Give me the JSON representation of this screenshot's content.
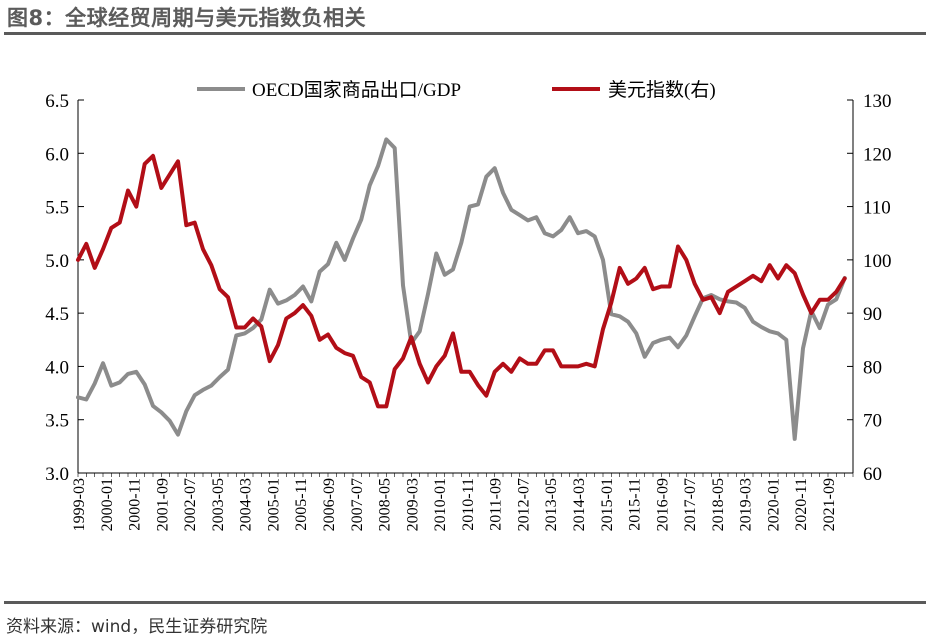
{
  "header": {
    "title": "图8：全球经贸周期与美元指数负相关"
  },
  "footer": {
    "source": "资料来源：wind，民生证券研究院"
  },
  "colors": {
    "oecd": "#8c8c8c",
    "dxy": "#b20e17",
    "axis": "#000000",
    "rule": "#5a5a5a",
    "title": "#5b5b5b"
  },
  "chart_data": {
    "type": "line",
    "title": "",
    "legend": [
      "OECD国家商品出口/GDP",
      "美元指数(右)"
    ],
    "legend_position": "top-center",
    "grid": false,
    "x_ticks": [
      "1999-03",
      "2000-01",
      "2000-11",
      "2001-09",
      "2002-07",
      "2003-05",
      "2004-03",
      "2005-01",
      "2005-11",
      "2006-09",
      "2007-07",
      "2008-05",
      "2009-03",
      "2010-01",
      "2010-11",
      "2011-09",
      "2012-07",
      "2013-05",
      "2014-03",
      "2015-01",
      "2015-11",
      "2016-09",
      "2017-07",
      "2018-05",
      "2019-03",
      "2020-01",
      "2020-11",
      "2021-09"
    ],
    "x_range": [
      1999.0,
      2022.25
    ],
    "y_left": {
      "min": 3.0,
      "max": 6.5,
      "ticks": [
        "3.0",
        "3.5",
        "4.0",
        "4.5",
        "5.0",
        "5.5",
        "6.0",
        "6.5"
      ]
    },
    "y_right": {
      "min": 60,
      "max": 130,
      "ticks": [
        "60",
        "70",
        "80",
        "90",
        "100",
        "110",
        "120",
        "130"
      ]
    },
    "series": [
      {
        "name": "OECD国家商品出口/GDP",
        "axis": "left",
        "x": [
          1999.0,
          1999.25,
          1999.5,
          1999.75,
          2000.0,
          2000.25,
          2000.5,
          2000.75,
          2001.0,
          2001.25,
          2001.5,
          2001.75,
          2002.0,
          2002.25,
          2002.5,
          2002.75,
          2003.0,
          2003.25,
          2003.5,
          2003.75,
          2004.0,
          2004.25,
          2004.5,
          2004.75,
          2005.0,
          2005.25,
          2005.5,
          2005.75,
          2006.0,
          2006.25,
          2006.5,
          2006.75,
          2007.0,
          2007.25,
          2007.5,
          2007.75,
          2008.0,
          2008.25,
          2008.5,
          2008.75,
          2009.0,
          2009.25,
          2009.5,
          2009.75,
          2010.0,
          2010.25,
          2010.5,
          2010.75,
          2011.0,
          2011.25,
          2011.5,
          2011.75,
          2012.0,
          2012.25,
          2012.5,
          2012.75,
          2013.0,
          2013.25,
          2013.5,
          2013.75,
          2014.0,
          2014.25,
          2014.5,
          2014.75,
          2015.0,
          2015.25,
          2015.5,
          2015.75,
          2016.0,
          2016.25,
          2016.5,
          2016.75,
          2017.0,
          2017.25,
          2017.5,
          2017.75,
          2018.0,
          2018.25,
          2018.5,
          2018.75,
          2019.0,
          2019.25,
          2019.5,
          2019.75,
          2020.0,
          2020.25,
          2020.5,
          2020.75,
          2021.0,
          2021.25,
          2021.5,
          2021.75,
          2022.0
        ],
        "values": [
          3.71,
          3.69,
          3.84,
          4.03,
          3.82,
          3.85,
          3.93,
          3.95,
          3.83,
          3.63,
          3.57,
          3.49,
          3.36,
          3.58,
          3.73,
          3.78,
          3.82,
          3.9,
          3.97,
          4.29,
          4.31,
          4.36,
          4.44,
          4.72,
          4.59,
          4.62,
          4.67,
          4.75,
          4.61,
          4.89,
          4.96,
          5.16,
          5.0,
          5.2,
          5.38,
          5.7,
          5.88,
          6.13,
          6.05,
          4.76,
          4.22,
          4.33,
          4.68,
          5.06,
          4.86,
          4.91,
          5.16,
          5.5,
          5.52,
          5.78,
          5.86,
          5.63,
          5.47,
          5.42,
          5.37,
          5.4,
          5.25,
          5.22,
          5.28,
          5.4,
          5.25,
          5.27,
          5.22,
          5.0,
          4.49,
          4.47,
          4.42,
          4.31,
          4.09,
          4.22,
          4.25,
          4.27,
          4.18,
          4.29,
          4.47,
          4.64,
          4.67,
          4.63,
          4.61,
          4.6,
          4.55,
          4.42,
          4.37,
          4.33,
          4.31,
          4.25,
          3.32,
          4.17,
          4.52,
          4.36,
          4.58,
          4.63,
          4.83
        ]
      },
      {
        "name": "美元指数(右)",
        "axis": "right",
        "x": [
          1999.0,
          1999.25,
          1999.5,
          1999.75,
          2000.0,
          2000.25,
          2000.5,
          2000.75,
          2001.0,
          2001.25,
          2001.5,
          2001.75,
          2002.0,
          2002.25,
          2002.5,
          2002.75,
          2003.0,
          2003.25,
          2003.5,
          2003.75,
          2004.0,
          2004.25,
          2004.5,
          2004.75,
          2005.0,
          2005.25,
          2005.5,
          2005.75,
          2006.0,
          2006.25,
          2006.5,
          2006.75,
          2007.0,
          2007.25,
          2007.5,
          2007.75,
          2008.0,
          2008.25,
          2008.5,
          2008.75,
          2009.0,
          2009.25,
          2009.5,
          2009.75,
          2010.0,
          2010.25,
          2010.5,
          2010.75,
          2011.0,
          2011.25,
          2011.5,
          2011.75,
          2012.0,
          2012.25,
          2012.5,
          2012.75,
          2013.0,
          2013.25,
          2013.5,
          2013.75,
          2014.0,
          2014.25,
          2014.5,
          2014.75,
          2015.0,
          2015.25,
          2015.5,
          2015.75,
          2016.0,
          2016.25,
          2016.5,
          2016.75,
          2017.0,
          2017.25,
          2017.5,
          2017.75,
          2018.0,
          2018.25,
          2018.5,
          2018.75,
          2019.0,
          2019.25,
          2019.5,
          2019.75,
          2020.0,
          2020.25,
          2020.5,
          2020.75,
          2021.0,
          2021.25,
          2021.5,
          2021.75,
          2022.0
        ],
        "values": [
          100,
          103,
          98.5,
          102,
          106,
          107,
          113,
          110,
          118,
          119.5,
          113.5,
          116,
          118.5,
          106.5,
          107,
          102,
          99,
          94.5,
          93,
          87.3,
          87.3,
          89,
          87.5,
          81,
          84,
          89,
          90,
          91.5,
          89.5,
          85,
          86,
          83.5,
          82.5,
          82,
          78,
          77,
          72.5,
          72.5,
          79.5,
          81.5,
          85.5,
          80.5,
          77,
          80,
          82,
          86.2,
          79,
          79,
          76.5,
          74.5,
          79,
          80.5,
          79,
          81.5,
          80.5,
          80.5,
          83,
          83,
          80,
          80,
          80,
          80.5,
          80,
          87,
          92,
          98.5,
          95.5,
          96.5,
          98.5,
          94.5,
          95,
          95,
          102.5,
          100,
          95.5,
          92.5,
          93,
          90,
          94,
          95,
          96,
          97,
          96,
          99,
          96.5,
          99,
          97.5,
          93.5,
          90,
          92.5,
          92.5,
          94,
          96.5
        ]
      }
    ]
  }
}
